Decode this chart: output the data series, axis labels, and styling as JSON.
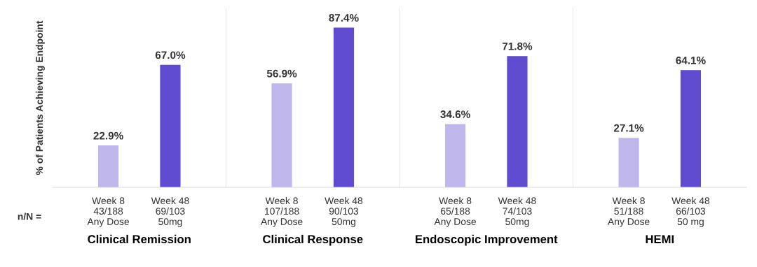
{
  "chart_data": [
    {
      "type": "bar",
      "xlabel": "Clinical Remission",
      "ylabel": "% of Patients Achieving Endpoint",
      "categories": [
        "Week 8\n43/188\nAny Dose",
        "Week 48\n69/103\n50mg"
      ],
      "values": [
        22.9,
        67.0
      ],
      "colors": [
        "#c0b8ec",
        "#5f4bd0"
      ],
      "value_labels": [
        "22.9%",
        "67.0%"
      ],
      "annotations": [
        "n/N ="
      ]
    },
    {
      "type": "bar",
      "xlabel": "Clinical Response",
      "categories": [
        "Week 8\n107/188\nAny Dose",
        "Week 48\n90/103\n50mg"
      ],
      "values": [
        56.9,
        87.4
      ],
      "colors": [
        "#c0b8ec",
        "#5f4bd0"
      ],
      "value_labels": [
        "56.9%",
        "87.4%"
      ]
    },
    {
      "type": "bar",
      "xlabel": "Endoscopic Improvement",
      "categories": [
        "Week 8\n65/188\nAny Dose",
        "Week 48\n74/103\n50mg"
      ],
      "values": [
        34.6,
        71.8
      ],
      "colors": [
        "#c0b8ec",
        "#5f4bd0"
      ],
      "value_labels": [
        "34.6%",
        "71.8%"
      ]
    },
    {
      "type": "bar",
      "xlabel": "HEMI",
      "categories": [
        "Week 8\n51/188\nAny Dose",
        "Week 48\n66/103\n50 mg"
      ],
      "values": [
        27.1,
        64.1
      ],
      "colors": [
        "#c0b8ec",
        "#5f4bd0"
      ],
      "value_labels": [
        "27.1%",
        "64.1%"
      ]
    }
  ]
}
